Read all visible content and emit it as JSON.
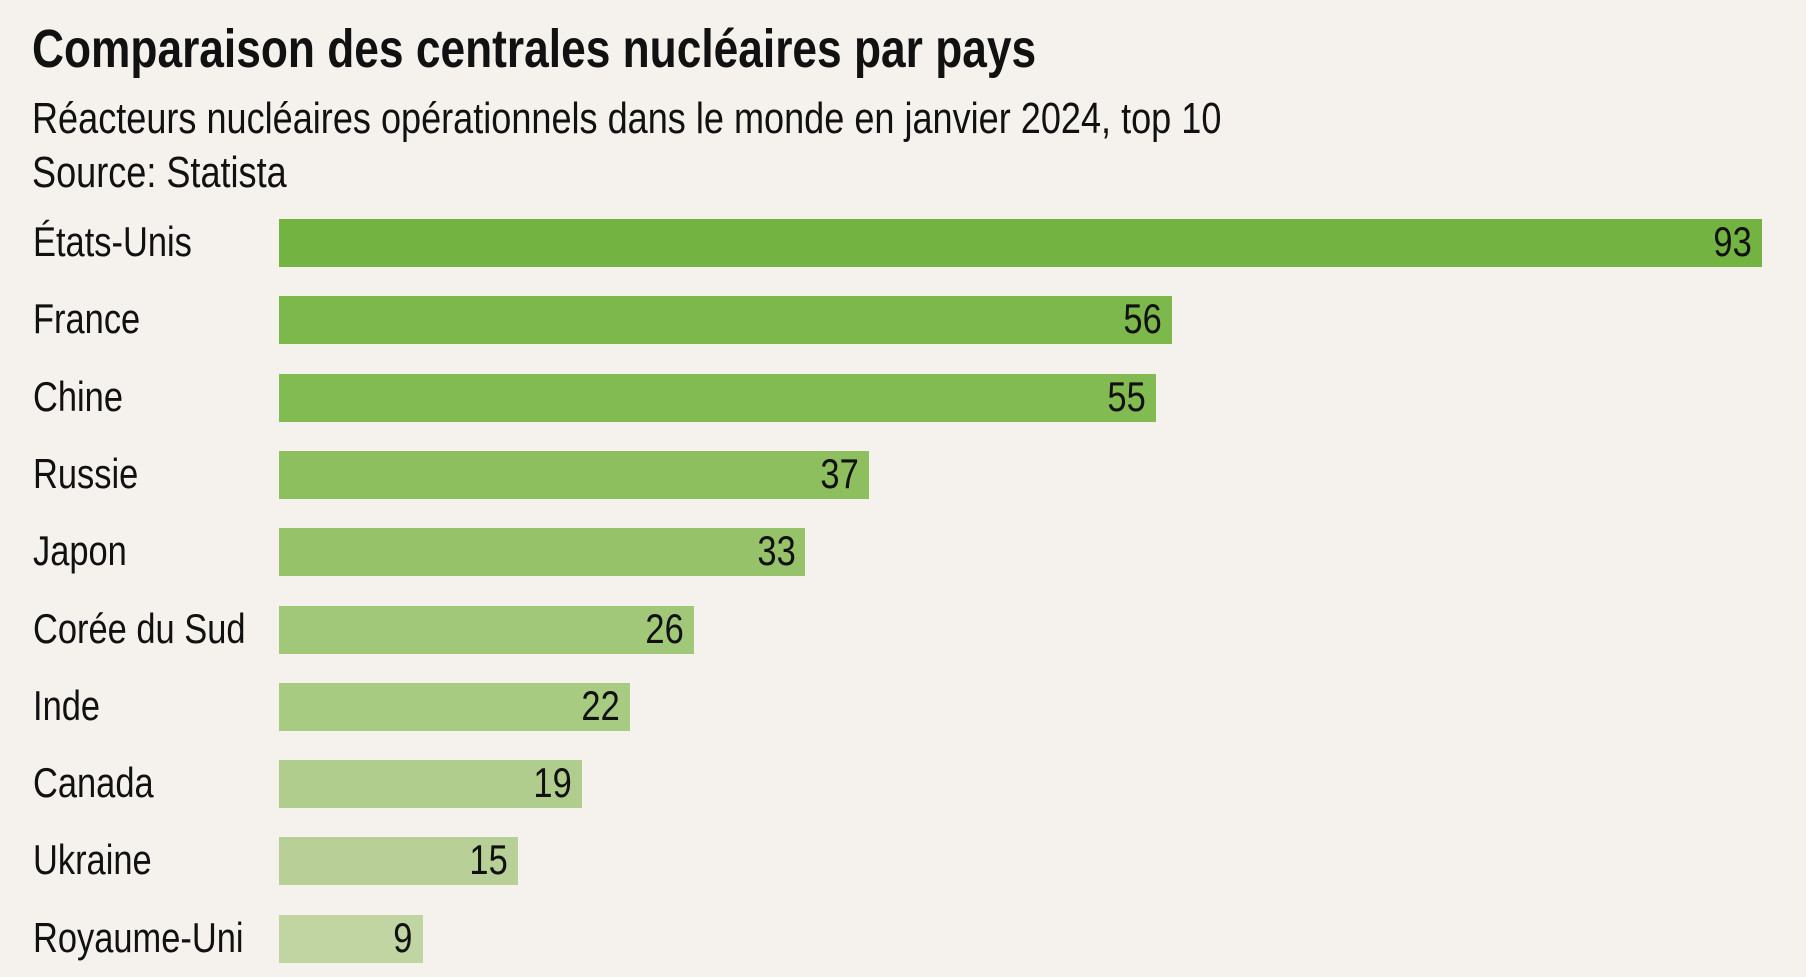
{
  "chart_data": {
    "type": "bar",
    "orientation": "horizontal",
    "title": "Comparaison des centrales nucléaires par pays",
    "subtitle": "Réacteurs nucléaires opérationnels dans le monde en janvier 2024, top 10",
    "source": "Source: Statista",
    "categories": [
      "États-Unis",
      "France",
      "Chine",
      "Russie",
      "Japon",
      "Corée du Sud",
      "Inde",
      "Canada",
      "Ukraine",
      "Royaume-Uni"
    ],
    "values": [
      93,
      56,
      55,
      37,
      33,
      26,
      22,
      19,
      15,
      9
    ],
    "xlim": [
      0,
      93
    ],
    "grid": false,
    "colors": [
      "#72b342",
      "#7db84c",
      "#83bb53",
      "#8ebf5f",
      "#96c36a",
      "#a0c878",
      "#a8cb82",
      "#b0cd8d",
      "#b8d098",
      "#c0d5a2"
    ]
  }
}
